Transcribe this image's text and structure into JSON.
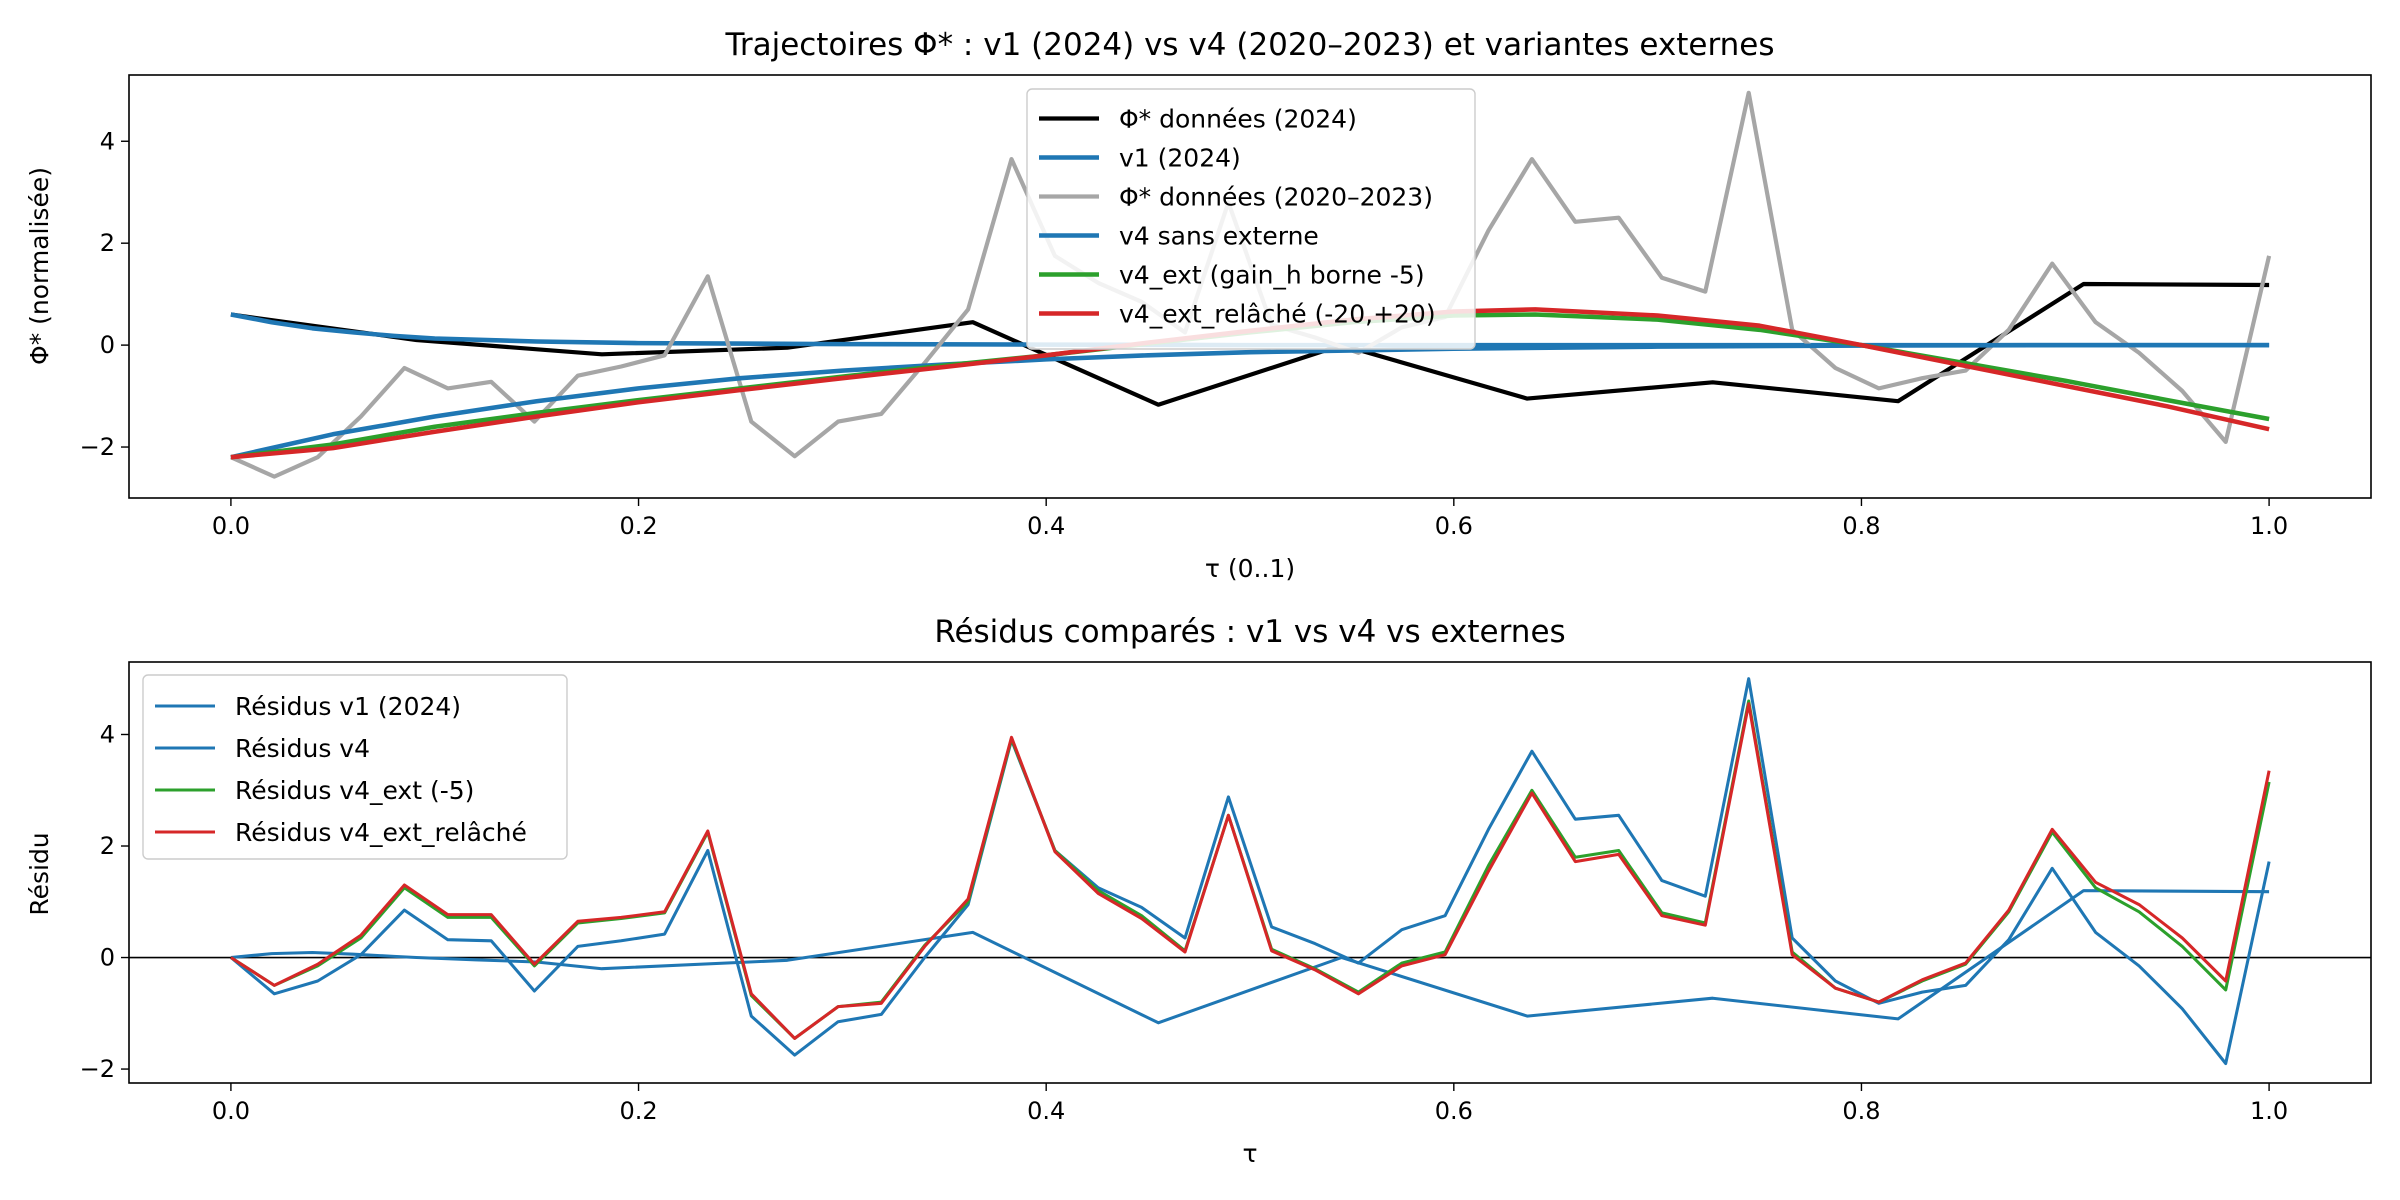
{
  "chart_data": [
    {
      "type": "line",
      "title": "Trajectoires Φ* : v1 (2024) vs v4 (2020–2023) et variantes externes",
      "xlabel": "τ (0..1)",
      "ylabel": "Φ* (normalisée)",
      "xlim": [
        -0.05,
        1.05
      ],
      "ylim": [
        -3.0,
        5.3
      ],
      "xticks": [
        0.0,
        0.2,
        0.4,
        0.6,
        0.8,
        1.0
      ],
      "xtick_labels": [
        "0.0",
        "0.2",
        "0.4",
        "0.6",
        "0.8",
        "1.0"
      ],
      "yticks": [
        -2,
        0,
        2,
        4
      ],
      "ytick_labels": [
        "−2",
        "0",
        "2",
        "4"
      ],
      "grid": false,
      "legend_position": "upper center",
      "series": [
        {
          "name": "Φ* données (2024)",
          "color": "#000000",
          "width": 2.2,
          "x": [
            0.0,
            0.091,
            0.182,
            0.273,
            0.364,
            0.455,
            0.545,
            0.636,
            0.727,
            0.818,
            0.909,
            1.0
          ],
          "y": [
            0.6,
            0.1,
            -0.18,
            -0.05,
            0.45,
            -1.17,
            0.0,
            -1.05,
            -0.73,
            -1.1,
            1.2,
            1.18
          ]
        },
        {
          "name": "v1 (2024)",
          "color": "#1f77b4",
          "width": 2.4,
          "x": [
            0.0,
            0.02,
            0.04,
            0.06,
            0.08,
            0.1,
            0.15,
            0.2,
            0.3,
            0.4,
            0.5,
            0.6,
            0.7,
            0.8,
            0.9,
            1.0
          ],
          "y": [
            0.6,
            0.45,
            0.33,
            0.25,
            0.18,
            0.13,
            0.07,
            0.04,
            0.02,
            0.01,
            0.0,
            0.0,
            0.0,
            0.0,
            0.0,
            0.0
          ]
        },
        {
          "name": "Φ* données (2020–2023)",
          "color": "#a6a6a6",
          "width": 2.2,
          "x": [
            0.0,
            0.0213,
            0.0426,
            0.0638,
            0.0851,
            0.1064,
            0.1277,
            0.1489,
            0.1702,
            0.1915,
            0.2128,
            0.234,
            0.2553,
            0.2766,
            0.2979,
            0.3191,
            0.3404,
            0.3617,
            0.383,
            0.4043,
            0.4255,
            0.4468,
            0.4681,
            0.4894,
            0.5106,
            0.5319,
            0.5532,
            0.5745,
            0.5957,
            0.617,
            0.6383,
            0.6596,
            0.6809,
            0.7021,
            0.7234,
            0.7447,
            0.766,
            0.7872,
            0.8085,
            0.8298,
            0.8511,
            0.8723,
            0.8936,
            0.9149,
            0.9362,
            0.9574,
            0.9787,
            1.0
          ],
          "y": [
            -2.2,
            -2.58,
            -2.2,
            -1.4,
            -0.45,
            -0.85,
            -0.72,
            -1.5,
            -0.6,
            -0.42,
            -0.2,
            1.35,
            -1.5,
            -2.18,
            -1.5,
            -1.35,
            -0.35,
            0.7,
            3.65,
            1.75,
            1.22,
            0.85,
            0.25,
            2.8,
            0.4,
            0.15,
            -0.15,
            0.35,
            0.55,
            2.25,
            3.65,
            2.42,
            2.5,
            1.32,
            1.05,
            4.95,
            0.3,
            -0.45,
            -0.85,
            -0.65,
            -0.5,
            0.3,
            1.6,
            0.45,
            -0.15,
            -0.9,
            -1.9,
            1.75
          ]
        },
        {
          "name": "v4 sans externe",
          "color": "#1f77b4",
          "width": 2.4,
          "x": [
            0.0,
            0.05,
            0.1,
            0.15,
            0.2,
            0.25,
            0.3,
            0.35,
            0.4,
            0.45,
            0.5,
            0.6,
            0.7,
            0.8,
            0.9,
            1.0
          ],
          "y": [
            -2.2,
            -1.75,
            -1.4,
            -1.1,
            -0.85,
            -0.65,
            -0.5,
            -0.38,
            -0.28,
            -0.2,
            -0.14,
            -0.07,
            -0.03,
            -0.01,
            0.0,
            0.0
          ]
        },
        {
          "name": "v4_ext (gain_h borne -5)",
          "color": "#2ca02c",
          "width": 2.4,
          "x": [
            0.0,
            0.05,
            0.1,
            0.15,
            0.2,
            0.25,
            0.3,
            0.35,
            0.4,
            0.45,
            0.5,
            0.55,
            0.6,
            0.64,
            0.7,
            0.75,
            0.8,
            0.85,
            0.9,
            0.95,
            1.0
          ],
          "y": [
            -2.2,
            -1.95,
            -1.6,
            -1.33,
            -1.08,
            -0.85,
            -0.62,
            -0.4,
            -0.2,
            0.03,
            0.25,
            0.45,
            0.58,
            0.6,
            0.5,
            0.3,
            0.0,
            -0.35,
            -0.7,
            -1.08,
            -1.45
          ]
        },
        {
          "name": "v4_ext_relâché (-20,+20)",
          "color": "#d62728",
          "width": 2.4,
          "x": [
            0.0,
            0.05,
            0.1,
            0.15,
            0.2,
            0.25,
            0.3,
            0.35,
            0.4,
            0.45,
            0.5,
            0.55,
            0.6,
            0.64,
            0.7,
            0.75,
            0.8,
            0.85,
            0.9,
            0.95,
            1.0
          ],
          "y": [
            -2.2,
            -2.02,
            -1.7,
            -1.4,
            -1.12,
            -0.88,
            -0.65,
            -0.43,
            -0.2,
            0.05,
            0.28,
            0.5,
            0.66,
            0.7,
            0.58,
            0.38,
            0.0,
            -0.4,
            -0.8,
            -1.2,
            -1.65
          ]
        }
      ]
    },
    {
      "type": "line",
      "title": "Résidus comparés : v1 vs v4 vs externes",
      "xlabel": "τ",
      "ylabel": "Résidu",
      "xlim": [
        -0.05,
        1.05
      ],
      "ylim": [
        -2.25,
        5.3
      ],
      "xticks": [
        0.0,
        0.2,
        0.4,
        0.6,
        0.8,
        1.0
      ],
      "xtick_labels": [
        "0.0",
        "0.2",
        "0.4",
        "0.6",
        "0.8",
        "1.0"
      ],
      "yticks": [
        -2,
        0,
        2,
        4
      ],
      "ytick_labels": [
        "−2",
        "0",
        "2",
        "4"
      ],
      "zero_line": true,
      "grid": false,
      "legend_position": "upper left",
      "series": [
        {
          "name": "Résidus v1 (2024)",
          "color": "#1f77b4",
          "width": 1.6,
          "x": [
            0.0,
            0.02,
            0.04,
            0.06,
            0.08,
            0.091,
            0.12,
            0.15,
            0.182,
            0.273,
            0.364,
            0.455,
            0.545,
            0.636,
            0.727,
            0.818,
            0.909,
            1.0
          ],
          "y": [
            0.0,
            0.07,
            0.09,
            0.06,
            0.02,
            0.0,
            -0.04,
            -0.08,
            -0.2,
            -0.05,
            0.45,
            -1.17,
            0.0,
            -1.05,
            -0.73,
            -1.1,
            1.2,
            1.18
          ]
        },
        {
          "name": "Résidus v4",
          "color": "#1f77b4",
          "width": 1.6,
          "x": [
            0.0,
            0.0213,
            0.0426,
            0.0638,
            0.0851,
            0.1064,
            0.1277,
            0.1489,
            0.1702,
            0.1915,
            0.2128,
            0.234,
            0.2553,
            0.2766,
            0.2979,
            0.3191,
            0.3404,
            0.3617,
            0.383,
            0.4043,
            0.4255,
            0.4468,
            0.4681,
            0.4894,
            0.5106,
            0.5319,
            0.5532,
            0.5745,
            0.5957,
            0.617,
            0.6383,
            0.6596,
            0.6809,
            0.7021,
            0.7234,
            0.7447,
            0.766,
            0.7872,
            0.8085,
            0.8298,
            0.8511,
            0.8723,
            0.8936,
            0.9149,
            0.9362,
            0.9574,
            0.9787,
            1.0
          ],
          "y": [
            0.0,
            -0.65,
            -0.42,
            0.05,
            0.85,
            0.32,
            0.3,
            -0.6,
            0.2,
            0.3,
            0.42,
            1.92,
            -1.05,
            -1.75,
            -1.15,
            -1.02,
            0.0,
            0.95,
            3.9,
            1.92,
            1.25,
            0.9,
            0.35,
            2.88,
            0.55,
            0.25,
            -0.1,
            0.5,
            0.75,
            2.3,
            3.7,
            2.48,
            2.55,
            1.38,
            1.1,
            5.0,
            0.35,
            -0.42,
            -0.82,
            -0.62,
            -0.5,
            0.32,
            1.6,
            0.45,
            -0.15,
            -0.92,
            -1.9,
            1.72
          ]
        },
        {
          "name": "Résidus v4_ext (-5)",
          "color": "#2ca02c",
          "width": 1.6,
          "x": [
            0.0,
            0.0213,
            0.0426,
            0.0638,
            0.0851,
            0.1064,
            0.1277,
            0.1489,
            0.1702,
            0.1915,
            0.2128,
            0.234,
            0.2553,
            0.2766,
            0.2979,
            0.3191,
            0.3404,
            0.3617,
            0.383,
            0.4043,
            0.4255,
            0.4468,
            0.4681,
            0.4894,
            0.5106,
            0.5319,
            0.5532,
            0.5745,
            0.5957,
            0.617,
            0.6383,
            0.6596,
            0.6809,
            0.7021,
            0.7234,
            0.7447,
            0.766,
            0.7872,
            0.8085,
            0.8298,
            0.8511,
            0.8723,
            0.8936,
            0.9149,
            0.9362,
            0.9574,
            0.9787,
            1.0
          ],
          "y": [
            0.0,
            -0.5,
            -0.15,
            0.35,
            1.25,
            0.72,
            0.72,
            -0.15,
            0.62,
            0.7,
            0.8,
            2.25,
            -0.68,
            -1.45,
            -0.88,
            -0.8,
            0.22,
            1.0,
            3.92,
            1.92,
            1.2,
            0.75,
            0.12,
            2.55,
            0.15,
            -0.2,
            -0.62,
            -0.1,
            0.1,
            1.65,
            3.0,
            1.8,
            1.92,
            0.8,
            0.62,
            4.6,
            0.1,
            -0.55,
            -0.8,
            -0.42,
            -0.12,
            0.82,
            2.25,
            1.25,
            0.82,
            0.2,
            -0.58,
            3.15
          ]
        },
        {
          "name": "Résidus v4_ext_relâché",
          "color": "#d62728",
          "width": 1.6,
          "x": [
            0.0,
            0.0213,
            0.0426,
            0.0638,
            0.0851,
            0.1064,
            0.1277,
            0.1489,
            0.1702,
            0.1915,
            0.2128,
            0.234,
            0.2553,
            0.2766,
            0.2979,
            0.3191,
            0.3404,
            0.3617,
            0.383,
            0.4043,
            0.4255,
            0.4468,
            0.4681,
            0.4894,
            0.5106,
            0.5319,
            0.5532,
            0.5745,
            0.5957,
            0.617,
            0.6383,
            0.6596,
            0.6809,
            0.7021,
            0.7234,
            0.7447,
            0.766,
            0.7872,
            0.8085,
            0.8298,
            0.8511,
            0.8723,
            0.8936,
            0.9149,
            0.9362,
            0.9574,
            0.9787,
            1.0
          ],
          "y": [
            0.0,
            -0.5,
            -0.12,
            0.4,
            1.3,
            0.77,
            0.77,
            -0.12,
            0.65,
            0.72,
            0.82,
            2.27,
            -0.65,
            -1.45,
            -0.88,
            -0.82,
            0.2,
            1.05,
            3.95,
            1.9,
            1.15,
            0.7,
            0.1,
            2.55,
            0.12,
            -0.22,
            -0.65,
            -0.15,
            0.05,
            1.55,
            2.95,
            1.72,
            1.85,
            0.75,
            0.58,
            4.55,
            0.05,
            -0.55,
            -0.8,
            -0.4,
            -0.1,
            0.85,
            2.3,
            1.35,
            0.95,
            0.35,
            -0.42,
            3.35
          ]
        }
      ]
    }
  ]
}
